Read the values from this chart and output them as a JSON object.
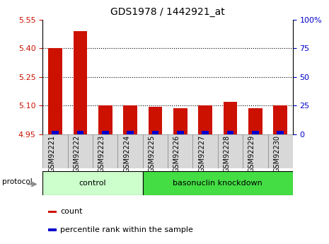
{
  "title": "GDS1978 / 1442921_at",
  "samples": [
    "GSM92221",
    "GSM92222",
    "GSM92223",
    "GSM92224",
    "GSM92225",
    "GSM92226",
    "GSM92227",
    "GSM92228",
    "GSM92229",
    "GSM92230"
  ],
  "red_values": [
    5.4,
    5.49,
    5.1,
    5.1,
    5.095,
    5.085,
    5.1,
    5.12,
    5.085,
    5.1
  ],
  "blue_values": [
    0.018,
    0.018,
    0.018,
    0.018,
    0.018,
    0.018,
    0.018,
    0.018,
    0.018,
    0.018
  ],
  "baseline": 4.95,
  "ylim_left": [
    4.95,
    5.55
  ],
  "ylim_right": [
    0,
    100
  ],
  "yticks_left": [
    4.95,
    5.1,
    5.25,
    5.4,
    5.55
  ],
  "yticks_right": [
    0,
    25,
    50,
    75,
    100
  ],
  "right_tick_labels": [
    "0",
    "25",
    "50",
    "75",
    "100%"
  ],
  "gridlines": [
    5.1,
    5.25,
    5.4
  ],
  "groups": [
    {
      "label": "control",
      "start": 0,
      "end": 4
    },
    {
      "label": "basonuclin knockdown",
      "start": 4,
      "end": 10
    }
  ],
  "protocol_label": "protocol",
  "legend_items": [
    {
      "color": "#cc1100",
      "label": "count"
    },
    {
      "color": "#0000cc",
      "label": "percentile rank within the sample"
    }
  ],
  "bar_width": 0.55,
  "red_color": "#cc1100",
  "blue_color": "#0000cc",
  "group_bg_color_control": "#ccffcc",
  "group_bg_color_basonuclin": "#44dd44",
  "tick_label_color_left": "#cc1100",
  "tick_label_color_right": "#0000cc",
  "fig_bg_color": "#ffffff",
  "cell_bg_color": "#d8d8d8",
  "cell_edge_color": "#888888"
}
